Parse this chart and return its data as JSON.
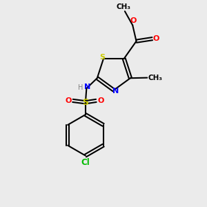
{
  "background_color": "#ebebeb",
  "atom_colors": {
    "C": "#000000",
    "H": "#808080",
    "N": "#0000ff",
    "O": "#ff0000",
    "S": "#cccc00",
    "Cl": "#00bb00"
  }
}
